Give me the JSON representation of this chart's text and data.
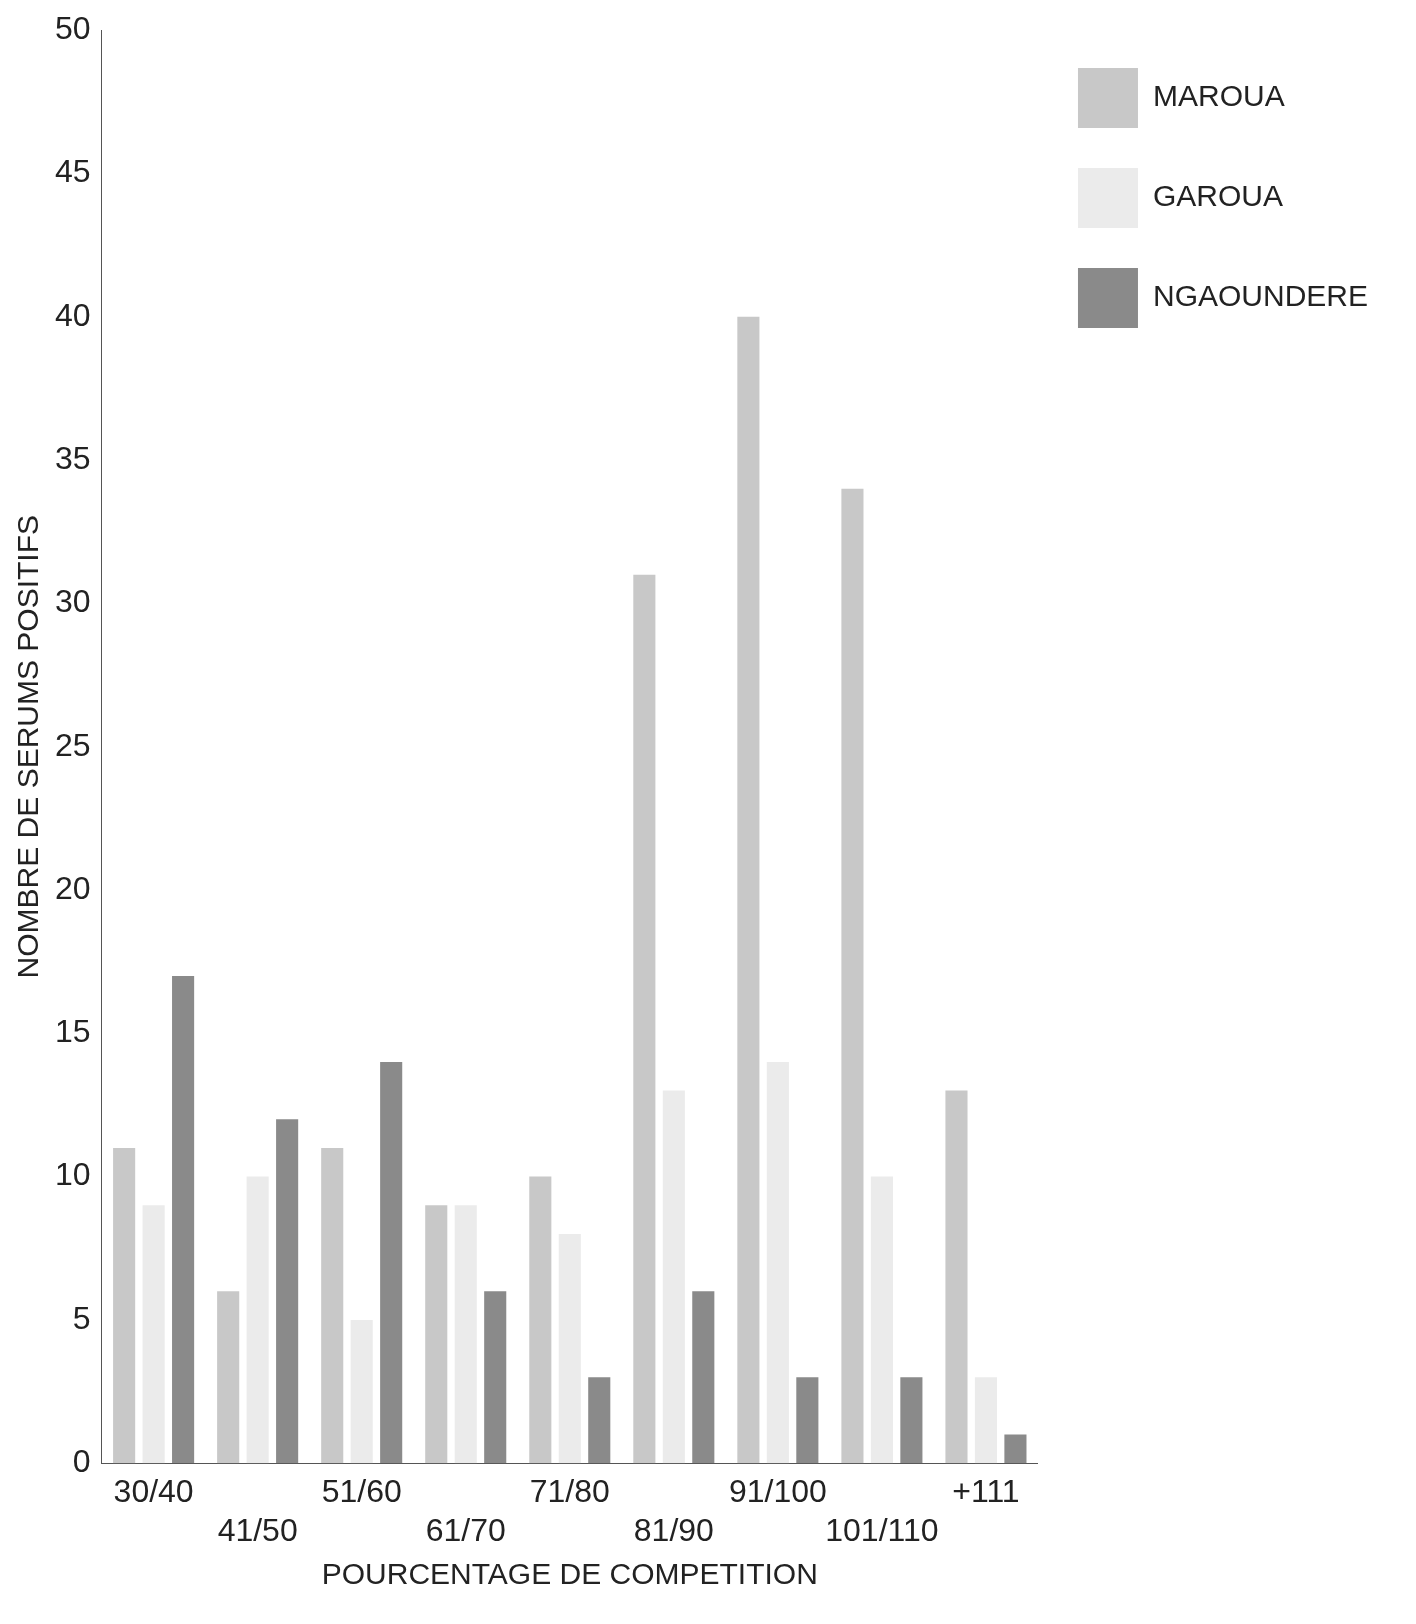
{
  "chart_data": {
    "type": "bar",
    "xlabel": "POURCENTAGE DE COMPETITION",
    "ylabel": "NOMBRE DE SERUMS POSITIFS",
    "categories": [
      "30/40",
      "41/50",
      "51/60",
      "61/70",
      "71/80",
      "81/90",
      "91/100",
      "101/110",
      "+111"
    ],
    "series": [
      {
        "name": "MAROUA",
        "color": "#c8c8c8",
        "values": [
          11,
          6,
          11,
          9,
          10,
          31,
          40,
          34,
          13
        ]
      },
      {
        "name": "GAROUA",
        "color": "#ebebeb",
        "values": [
          9,
          10,
          5,
          9,
          8,
          13,
          14,
          10,
          3
        ]
      },
      {
        "name": "NGAOUNDERE",
        "color": "#8a8a8a",
        "values": [
          17,
          12,
          14,
          6,
          3,
          6,
          3,
          3,
          1
        ]
      }
    ],
    "ylim": [
      0,
      50
    ],
    "yticks": [
      0,
      5,
      10,
      15,
      20,
      25,
      30,
      35,
      40,
      45,
      50
    ],
    "grid": false,
    "legend": "top right"
  }
}
